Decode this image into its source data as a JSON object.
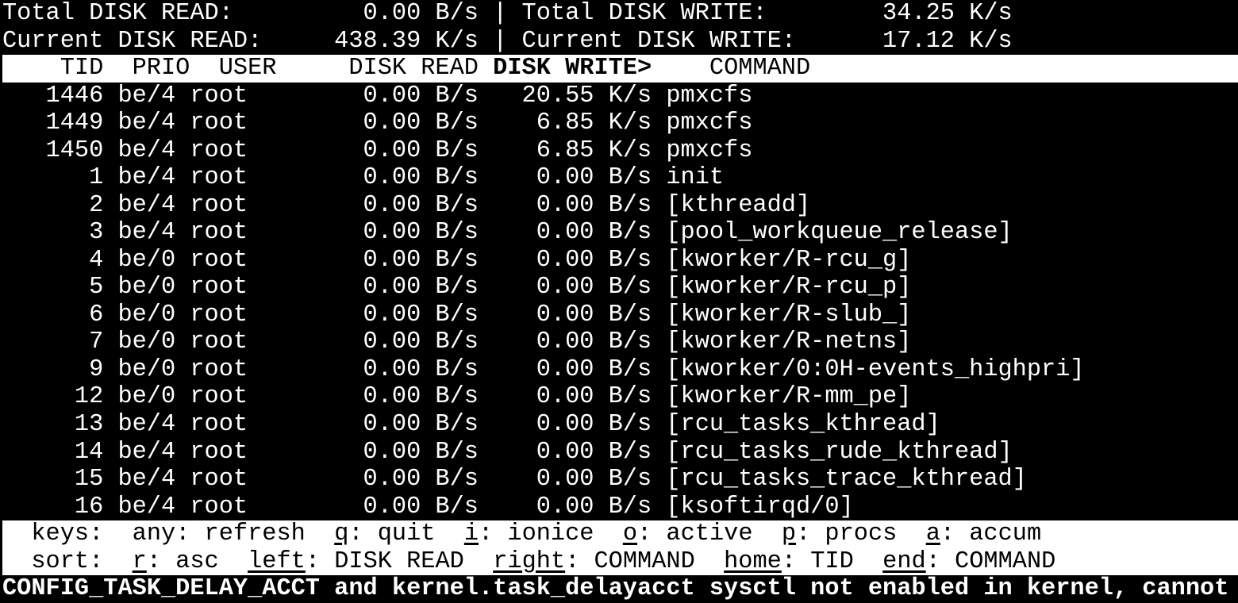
{
  "colors": {
    "background": "#000000",
    "foreground": "#ffffff",
    "inverse_background": "#ffffff",
    "inverse_foreground": "#000000"
  },
  "summary": {
    "total_read_label": "Total DISK READ:",
    "total_read_value": "0.00 B/s",
    "total_write_label": "Total DISK WRITE:",
    "total_write_value": "34.25 K/s",
    "current_read_label": "Current DISK READ:",
    "current_read_value": "438.39 K/s",
    "current_write_label": "Current DISK WRITE:",
    "current_write_value": "17.12 K/s",
    "separator": "|"
  },
  "table": {
    "columns": [
      "TID",
      "PRIO",
      "USER",
      "DISK READ",
      "DISK WRITE",
      "COMMAND"
    ],
    "sort_column": "DISK WRITE",
    "sort_indicator": ">",
    "rows": [
      {
        "tid": "1446",
        "prio": "be/4",
        "user": "root",
        "disk_read": "0.00 B/s",
        "disk_write": "20.55 K/s",
        "command": "pmxcfs"
      },
      {
        "tid": "1449",
        "prio": "be/4",
        "user": "root",
        "disk_read": "0.00 B/s",
        "disk_write": "6.85 K/s",
        "command": "pmxcfs"
      },
      {
        "tid": "1450",
        "prio": "be/4",
        "user": "root",
        "disk_read": "0.00 B/s",
        "disk_write": "6.85 K/s",
        "command": "pmxcfs"
      },
      {
        "tid": "1",
        "prio": "be/4",
        "user": "root",
        "disk_read": "0.00 B/s",
        "disk_write": "0.00 B/s",
        "command": "init"
      },
      {
        "tid": "2",
        "prio": "be/4",
        "user": "root",
        "disk_read": "0.00 B/s",
        "disk_write": "0.00 B/s",
        "command": "[kthreadd]"
      },
      {
        "tid": "3",
        "prio": "be/4",
        "user": "root",
        "disk_read": "0.00 B/s",
        "disk_write": "0.00 B/s",
        "command": "[pool_workqueue_release]"
      },
      {
        "tid": "4",
        "prio": "be/0",
        "user": "root",
        "disk_read": "0.00 B/s",
        "disk_write": "0.00 B/s",
        "command": "[kworker/R-rcu_g]"
      },
      {
        "tid": "5",
        "prio": "be/0",
        "user": "root",
        "disk_read": "0.00 B/s",
        "disk_write": "0.00 B/s",
        "command": "[kworker/R-rcu_p]"
      },
      {
        "tid": "6",
        "prio": "be/0",
        "user": "root",
        "disk_read": "0.00 B/s",
        "disk_write": "0.00 B/s",
        "command": "[kworker/R-slub_]"
      },
      {
        "tid": "7",
        "prio": "be/0",
        "user": "root",
        "disk_read": "0.00 B/s",
        "disk_write": "0.00 B/s",
        "command": "[kworker/R-netns]"
      },
      {
        "tid": "9",
        "prio": "be/0",
        "user": "root",
        "disk_read": "0.00 B/s",
        "disk_write": "0.00 B/s",
        "command": "[kworker/0:0H-events_highpri]"
      },
      {
        "tid": "12",
        "prio": "be/0",
        "user": "root",
        "disk_read": "0.00 B/s",
        "disk_write": "0.00 B/s",
        "command": "[kworker/R-mm_pe]"
      },
      {
        "tid": "13",
        "prio": "be/4",
        "user": "root",
        "disk_read": "0.00 B/s",
        "disk_write": "0.00 B/s",
        "command": "[rcu_tasks_kthread]"
      },
      {
        "tid": "14",
        "prio": "be/4",
        "user": "root",
        "disk_read": "0.00 B/s",
        "disk_write": "0.00 B/s",
        "command": "[rcu_tasks_rude_kthread]"
      },
      {
        "tid": "15",
        "prio": "be/4",
        "user": "root",
        "disk_read": "0.00 B/s",
        "disk_write": "0.00 B/s",
        "command": "[rcu_tasks_trace_kthread]"
      },
      {
        "tid": "16",
        "prio": "be/4",
        "user": "root",
        "disk_read": "0.00 B/s",
        "disk_write": "0.00 B/s",
        "command": "[ksoftirqd/0]"
      }
    ]
  },
  "help": {
    "keys": {
      "label": "keys:",
      "items": [
        {
          "key": "any",
          "action": "refresh",
          "underlined": false
        },
        {
          "key": "q",
          "action": "quit",
          "underlined": true
        },
        {
          "key": "i",
          "action": "ionice",
          "underlined": true
        },
        {
          "key": "o",
          "action": "active",
          "underlined": true
        },
        {
          "key": "p",
          "action": "procs",
          "underlined": true
        },
        {
          "key": "a",
          "action": "accum",
          "underlined": true
        }
      ]
    },
    "sort": {
      "label": "sort:",
      "items": [
        {
          "key": "r",
          "action": "asc",
          "underlined": true
        },
        {
          "key": "left",
          "action": "DISK READ",
          "underlined": true
        },
        {
          "key": "right",
          "action": "COMMAND",
          "underlined": true
        },
        {
          "key": "home",
          "action": "TID",
          "underlined": true
        },
        {
          "key": "end",
          "action": "COMMAND",
          "underlined": true
        }
      ]
    }
  },
  "status_bar": {
    "message": "CONFIG_TASK_DELAY_ACCT and kernel.task_delayacct sysctl not enabled in kernel, cannot"
  }
}
